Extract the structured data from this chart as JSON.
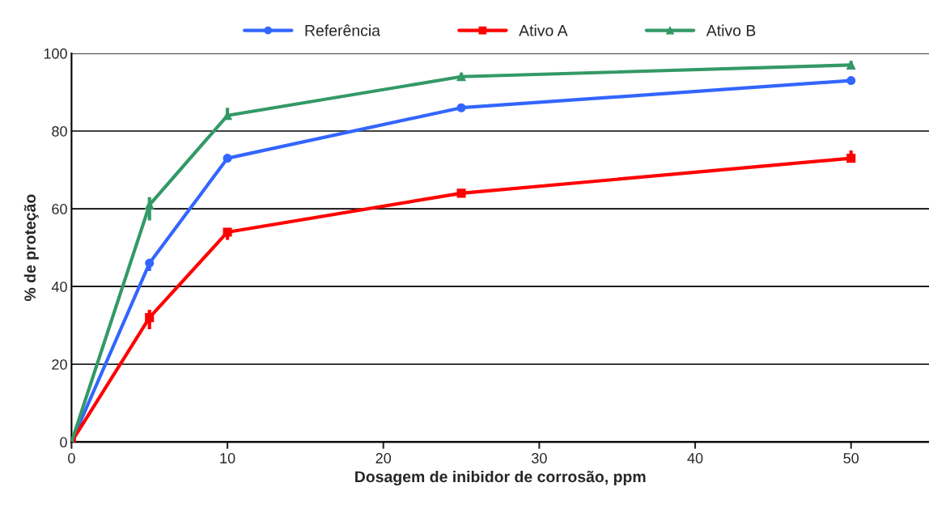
{
  "chart_data": {
    "type": "line",
    "xlabel": "Dosagem de inibidor de corrosão, ppm",
    "ylabel": "% de proteção",
    "x": [
      0,
      5,
      10,
      25,
      50
    ],
    "xlim": [
      0,
      55
    ],
    "xticks": [
      0,
      10,
      20,
      30,
      40,
      50
    ],
    "ylim": [
      0,
      100
    ],
    "yticks": [
      0,
      20,
      40,
      60,
      80,
      100
    ],
    "grid": "y",
    "legend": "top",
    "series": [
      {
        "name": "Referência",
        "color": "#3366ff",
        "marker": "circle",
        "values": [
          0,
          46,
          73,
          86,
          93
        ],
        "errors": [
          null,
          [
            44,
            47
          ],
          [
            72,
            74
          ],
          [
            85,
            87
          ],
          [
            92,
            94
          ]
        ]
      },
      {
        "name": "Ativo A",
        "color": "#ff0000",
        "marker": "square",
        "values": [
          0,
          32,
          54,
          64,
          73
        ],
        "errors": [
          null,
          [
            29,
            34
          ],
          [
            52,
            55
          ],
          [
            63,
            65
          ],
          [
            72,
            75
          ]
        ]
      },
      {
        "name": "Ativo B",
        "color": "#339966",
        "marker": "triangle",
        "values": [
          0,
          61,
          84,
          94,
          97
        ],
        "errors": [
          null,
          [
            57,
            63
          ],
          [
            83,
            86
          ],
          [
            93,
            95
          ],
          [
            96,
            98
          ]
        ]
      }
    ]
  }
}
